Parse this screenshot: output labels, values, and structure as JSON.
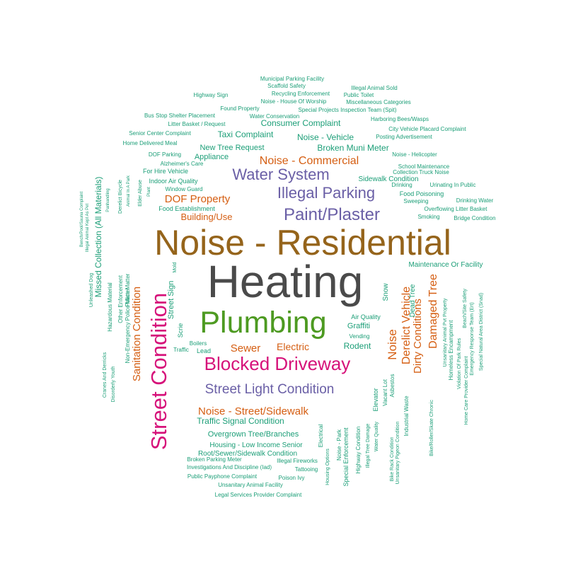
{
  "palette": {
    "brown": "#95641b",
    "gray": "#4a4a4a",
    "green": "#4d9a21",
    "magenta": "#d6127a",
    "purple": "#6a5fa6",
    "orange": "#d55e12",
    "teal": "#1b9e77"
  },
  "words": [
    {
      "text": "Noise - Residential",
      "color": "brown"
    },
    {
      "text": "Heating",
      "color": "gray"
    },
    {
      "text": "Plumbing",
      "color": "green"
    },
    {
      "text": "Blocked Driveway",
      "color": "magenta"
    },
    {
      "text": "Street Condition",
      "color": "magenta"
    },
    {
      "text": "Street Light Condition",
      "color": "purple"
    },
    {
      "text": "Paint/Plaster",
      "color": "purple"
    },
    {
      "text": "Illegal Parking",
      "color": "purple"
    },
    {
      "text": "Water System",
      "color": "purple"
    },
    {
      "text": "Noise - Commercial",
      "color": "orange"
    },
    {
      "text": "DOF Property",
      "color": "orange"
    },
    {
      "text": "Building/Use",
      "color": "orange"
    },
    {
      "text": "Sewer",
      "color": "orange"
    },
    {
      "text": "Electric",
      "color": "orange"
    },
    {
      "text": "Noise - Street/Sidewalk",
      "color": "orange"
    },
    {
      "text": "Sanitation Condition",
      "color": "orange"
    },
    {
      "text": "Noise",
      "color": "orange"
    },
    {
      "text": "Derelict Vehicle",
      "color": "orange"
    },
    {
      "text": "Dirty Conditions",
      "color": "orange"
    },
    {
      "text": "Damaged Tree",
      "color": "orange"
    },
    {
      "text": "Missed Collection (All Materials)",
      "color": "teal"
    },
    {
      "text": "Traffic Signal Condition",
      "color": "teal"
    },
    {
      "text": "Overgrown Tree/Branches",
      "color": "teal"
    },
    {
      "text": "Housing - Low Income Senior",
      "color": "teal"
    },
    {
      "text": "Root/Sewer/Sidewalk Condition",
      "color": "teal"
    },
    {
      "text": "Broken Parking Meter",
      "color": "teal"
    },
    {
      "text": "Investigations And Discipline (Iad)",
      "color": "teal"
    },
    {
      "text": "Public Payphone Complaint",
      "color": "teal"
    },
    {
      "text": "Unsanitary Animal Facility",
      "color": "teal"
    },
    {
      "text": "Legal Services Provider Complaint",
      "color": "teal"
    },
    {
      "text": "Illegal Fireworks",
      "color": "teal"
    },
    {
      "text": "Tattooing",
      "color": "teal"
    },
    {
      "text": "Poison Ivy",
      "color": "teal"
    },
    {
      "text": "Municipal Parking Facility",
      "color": "teal"
    },
    {
      "text": "Scaffold Safety",
      "color": "teal"
    },
    {
      "text": "Illegal Animal Sold",
      "color": "teal"
    },
    {
      "text": "Highway Sign",
      "color": "teal"
    },
    {
      "text": "Recycling Enforcement",
      "color": "teal"
    },
    {
      "text": "Public Toilet",
      "color": "teal"
    },
    {
      "text": "Noise - House Of Worship",
      "color": "teal"
    },
    {
      "text": "Miscellaneous Categories",
      "color": "teal"
    },
    {
      "text": "Found Property",
      "color": "teal"
    },
    {
      "text": "Special Projects Inspection Team (Spit)",
      "color": "teal"
    },
    {
      "text": "Bus Stop Shelter Placement",
      "color": "teal"
    },
    {
      "text": "Water Conservation",
      "color": "teal"
    },
    {
      "text": "Harboring Bees/Wasps",
      "color": "teal"
    },
    {
      "text": "Litter Basket / Request",
      "color": "teal"
    },
    {
      "text": "Consumer Complaint",
      "color": "teal"
    },
    {
      "text": "City Vehicle Placard Complaint",
      "color": "teal"
    },
    {
      "text": "Senior Center Complaint",
      "color": "teal"
    },
    {
      "text": "Taxi Complaint",
      "color": "teal"
    },
    {
      "text": "Noise - Vehicle",
      "color": "teal"
    },
    {
      "text": "Posting Advertisement",
      "color": "teal"
    },
    {
      "text": "Home Delivered Meal",
      "color": "teal"
    },
    {
      "text": "New Tree Request",
      "color": "teal"
    },
    {
      "text": "Broken Muni Meter",
      "color": "teal"
    },
    {
      "text": "DOF Parking",
      "color": "teal"
    },
    {
      "text": "Appliance",
      "color": "teal"
    },
    {
      "text": "Noise - Helicopter",
      "color": "teal"
    },
    {
      "text": "Alzheimer's Care",
      "color": "teal"
    },
    {
      "text": "School Maintenance",
      "color": "teal"
    },
    {
      "text": "For Hire Vehicle",
      "color": "teal"
    },
    {
      "text": "Collection Truck Noise",
      "color": "teal"
    },
    {
      "text": "Sidewalk Condition",
      "color": "teal"
    },
    {
      "text": "Indoor Air Quality",
      "color": "teal"
    },
    {
      "text": "Drinking",
      "color": "teal"
    },
    {
      "text": "Urinating In Public",
      "color": "teal"
    },
    {
      "text": "Window Guard",
      "color": "teal"
    },
    {
      "text": "Food Poisoning",
      "color": "teal"
    },
    {
      "text": "Sweeping",
      "color": "teal"
    },
    {
      "text": "Drinking Water",
      "color": "teal"
    },
    {
      "text": "Food Establishment",
      "color": "teal"
    },
    {
      "text": "Overflowing Litter Basket",
      "color": "teal"
    },
    {
      "text": "Smoking",
      "color": "teal"
    },
    {
      "text": "Bridge Condition",
      "color": "teal"
    },
    {
      "text": "Maintenance Or Facility",
      "color": "teal"
    },
    {
      "text": "Air Quality",
      "color": "teal"
    },
    {
      "text": "Graffiti",
      "color": "teal"
    },
    {
      "text": "Vending",
      "color": "teal"
    },
    {
      "text": "Rodent",
      "color": "teal"
    },
    {
      "text": "Boilers",
      "color": "teal"
    },
    {
      "text": "Traffic",
      "color": "teal"
    },
    {
      "text": "Lead",
      "color": "teal"
    },
    {
      "text": "Mold",
      "color": "teal"
    },
    {
      "text": "Street Sign",
      "color": "teal"
    },
    {
      "text": "Scrie",
      "color": "teal"
    },
    {
      "text": "Snow",
      "color": "teal"
    },
    {
      "text": "Dead Tree",
      "color": "teal"
    },
    {
      "text": "Electrical",
      "color": "teal"
    },
    {
      "text": "Housing Options",
      "color": "teal"
    },
    {
      "text": "Noise - Park",
      "color": "teal"
    },
    {
      "text": "Special Enforcement",
      "color": "teal"
    },
    {
      "text": "Highway Condition",
      "color": "teal"
    },
    {
      "text": "Illegal Tree Damage",
      "color": "teal"
    },
    {
      "text": "Water Quality",
      "color": "teal"
    },
    {
      "text": "Elevator",
      "color": "teal"
    },
    {
      "text": "Vacant Lot",
      "color": "teal"
    },
    {
      "text": "Asbestos",
      "color": "teal"
    },
    {
      "text": "Industrial Waste",
      "color": "teal"
    },
    {
      "text": "Bike Rack Condition",
      "color": "teal"
    },
    {
      "text": "Unsanitary Pigeon Condition",
      "color": "teal"
    },
    {
      "text": "Bike/Roller/Skate Chronic",
      "color": "teal"
    },
    {
      "text": "Unsanitary Animal Pvt Property",
      "color": "teal"
    },
    {
      "text": "Homeless Encampment",
      "color": "teal"
    },
    {
      "text": "Violation Of Park Rules",
      "color": "teal"
    },
    {
      "text": "Home Care Provider Complaint",
      "color": "teal"
    },
    {
      "text": "Beach/Site Safety",
      "color": "teal"
    },
    {
      "text": "Emergency Response Team (Ert)",
      "color": "teal"
    },
    {
      "text": "Special Natural Area District (Snad)",
      "color": "teal"
    },
    {
      "text": "Bench/Pool/Sauna Complaint",
      "color": "teal"
    },
    {
      "text": "Illegal Animal Kept As Pet",
      "color": "teal"
    },
    {
      "text": "Unleashed Dog",
      "color": "teal"
    },
    {
      "text": "Panhandling",
      "color": "teal"
    },
    {
      "text": "Derelict Bicycle",
      "color": "teal"
    },
    {
      "text": "Animal In A Park",
      "color": "teal"
    },
    {
      "text": "Elder Abuse",
      "color": "teal"
    },
    {
      "text": "Plant",
      "color": "teal"
    },
    {
      "text": "Hazardous Material",
      "color": "teal"
    },
    {
      "text": "Other Enforcement",
      "color": "teal"
    },
    {
      "text": "Police Matter",
      "color": "teal"
    },
    {
      "text": "Non-Emergency Police Matter",
      "color": "teal"
    },
    {
      "text": "Cranes And Derricks",
      "color": "teal"
    },
    {
      "text": "Disorderly Youth",
      "color": "teal"
    }
  ]
}
